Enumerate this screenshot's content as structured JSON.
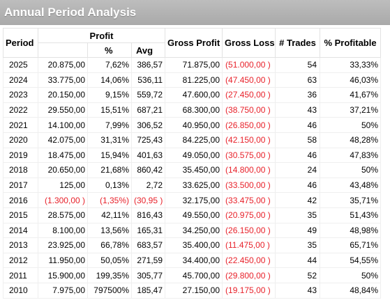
{
  "title": "Annual Period Analysis",
  "columns": {
    "period": "Period",
    "profit": "Profit",
    "pct": "%",
    "avg": "Avg",
    "gross_profit": "Gross Profit",
    "gross_loss": "Gross Loss",
    "trades": "# Trades",
    "pct_profitable": "% Profitable"
  },
  "colors": {
    "negative": "#e8212a",
    "title_bg": "#b3b3b3",
    "title_text": "#ffffff"
  },
  "rows": [
    {
      "period": "2025",
      "profit": "20.875,00",
      "pct": "7,62%",
      "avg": "386,57",
      "gross_profit": "71.875,00",
      "gross_loss": "(51.000,00 )",
      "trades": "54",
      "pct_profitable": "33,33%",
      "negative": false
    },
    {
      "period": "2024",
      "profit": "33.775,00",
      "pct": "14,06%",
      "avg": "536,11",
      "gross_profit": "81.225,00",
      "gross_loss": "(47.450,00 )",
      "trades": "63",
      "pct_profitable": "46,03%",
      "negative": false
    },
    {
      "period": "2023",
      "profit": "20.150,00",
      "pct": "9,15%",
      "avg": "559,72",
      "gross_profit": "47.600,00",
      "gross_loss": "(27.450,00 )",
      "trades": "36",
      "pct_profitable": "41,67%",
      "negative": false
    },
    {
      "period": "2022",
      "profit": "29.550,00",
      "pct": "15,51%",
      "avg": "687,21",
      "gross_profit": "68.300,00",
      "gross_loss": "(38.750,00 )",
      "trades": "43",
      "pct_profitable": "37,21%",
      "negative": false
    },
    {
      "period": "2021",
      "profit": "14.100,00",
      "pct": "7,99%",
      "avg": "306,52",
      "gross_profit": "40.950,00",
      "gross_loss": "(26.850,00 )",
      "trades": "46",
      "pct_profitable": "50%",
      "negative": false
    },
    {
      "period": "2020",
      "profit": "42.075,00",
      "pct": "31,31%",
      "avg": "725,43",
      "gross_profit": "84.225,00",
      "gross_loss": "(42.150,00 )",
      "trades": "58",
      "pct_profitable": "48,28%",
      "negative": false
    },
    {
      "period": "2019",
      "profit": "18.475,00",
      "pct": "15,94%",
      "avg": "401,63",
      "gross_profit": "49.050,00",
      "gross_loss": "(30.575,00 )",
      "trades": "46",
      "pct_profitable": "47,83%",
      "negative": false
    },
    {
      "period": "2018",
      "profit": "20.650,00",
      "pct": "21,68%",
      "avg": "860,42",
      "gross_profit": "35.450,00",
      "gross_loss": "(14.800,00 )",
      "trades": "24",
      "pct_profitable": "50%",
      "negative": false
    },
    {
      "period": "2017",
      "profit": "125,00",
      "pct": "0,13%",
      "avg": "2,72",
      "gross_profit": "33.625,00",
      "gross_loss": "(33.500,00 )",
      "trades": "46",
      "pct_profitable": "43,48%",
      "negative": false
    },
    {
      "period": "2016",
      "profit": "(1.300,00 )",
      "pct": "(1,35%)",
      "avg": "(30,95 )",
      "gross_profit": "32.175,00",
      "gross_loss": "(33.475,00 )",
      "trades": "42",
      "pct_profitable": "35,71%",
      "negative": true
    },
    {
      "period": "2015",
      "profit": "28.575,00",
      "pct": "42,11%",
      "avg": "816,43",
      "gross_profit": "49.550,00",
      "gross_loss": "(20.975,00 )",
      "trades": "35",
      "pct_profitable": "51,43%",
      "negative": false
    },
    {
      "period": "2014",
      "profit": "8.100,00",
      "pct": "13,56%",
      "avg": "165,31",
      "gross_profit": "34.250,00",
      "gross_loss": "(26.150,00 )",
      "trades": "49",
      "pct_profitable": "48,98%",
      "negative": false
    },
    {
      "period": "2013",
      "profit": "23.925,00",
      "pct": "66,78%",
      "avg": "683,57",
      "gross_profit": "35.400,00",
      "gross_loss": "(11.475,00 )",
      "trades": "35",
      "pct_profitable": "65,71%",
      "negative": false
    },
    {
      "period": "2012",
      "profit": "11.950,00",
      "pct": "50,05%",
      "avg": "271,59",
      "gross_profit": "34.400,00",
      "gross_loss": "(22.450,00 )",
      "trades": "44",
      "pct_profitable": "54,55%",
      "negative": false
    },
    {
      "period": "2011",
      "profit": "15.900,00",
      "pct": "199,35%",
      "avg": "305,77",
      "gross_profit": "45.700,00",
      "gross_loss": "(29.800,00 )",
      "trades": "52",
      "pct_profitable": "50%",
      "negative": false
    },
    {
      "period": "2010",
      "profit": "7.975,00",
      "pct": "797500%",
      "avg": "185,47",
      "gross_profit": "27.150,00",
      "gross_loss": "(19.175,00 )",
      "trades": "43",
      "pct_profitable": "48,84%",
      "negative": false
    }
  ]
}
